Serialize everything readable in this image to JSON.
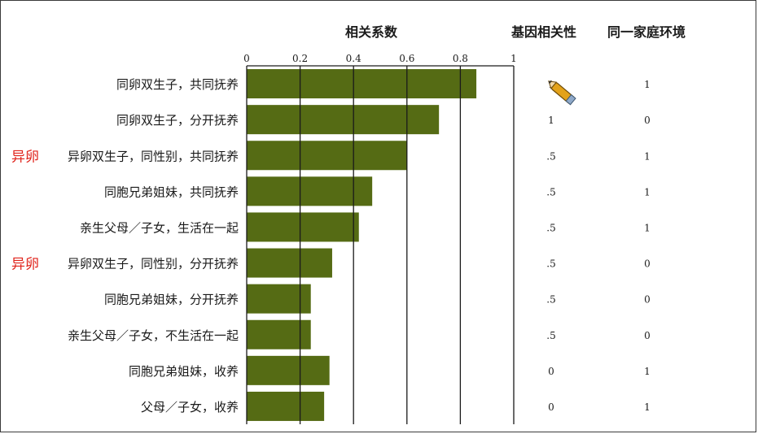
{
  "chart_data": {
    "type": "bar",
    "orientation": "horizontal",
    "xlabel": "相关系数",
    "xlim": [
      0,
      1
    ],
    "xticks": [
      "0",
      "0.2",
      "0.4",
      "0.6",
      "0.8",
      "1"
    ],
    "categories": [
      "同卵双生子，共同抚养",
      "同卵双生子，分开抚养",
      "异卵双生子，同性别，共同抚养",
      "同胞兄弟姐妹，共同抚养",
      "亲生父母／子女，生活在一起",
      "异卵双生子，同性别，分开抚养",
      "同胞兄弟姐妹，分开抚养",
      "亲生父母／子女，不生活在一起",
      "同胞兄弟姐妹，收养",
      "父母／子女，收养"
    ],
    "values": [
      0.86,
      0.72,
      0.6,
      0.47,
      0.42,
      0.32,
      0.24,
      0.24,
      0.31,
      0.29
    ],
    "bar_color": "#556b14",
    "grid": true,
    "table_columns": [
      {
        "header": "基因相关性",
        "values": [
          "1",
          "1",
          ".5",
          ".5",
          ".5",
          ".5",
          ".5",
          ".5",
          "0",
          "0"
        ]
      },
      {
        "header": "同一家庭环境",
        "values": [
          "1",
          "0",
          "1",
          "1",
          "1",
          "0",
          "0",
          "0",
          "1",
          "1"
        ]
      }
    ],
    "annotations": [
      "异卵",
      "异卵"
    ],
    "annotation_color": "#e0231b"
  }
}
